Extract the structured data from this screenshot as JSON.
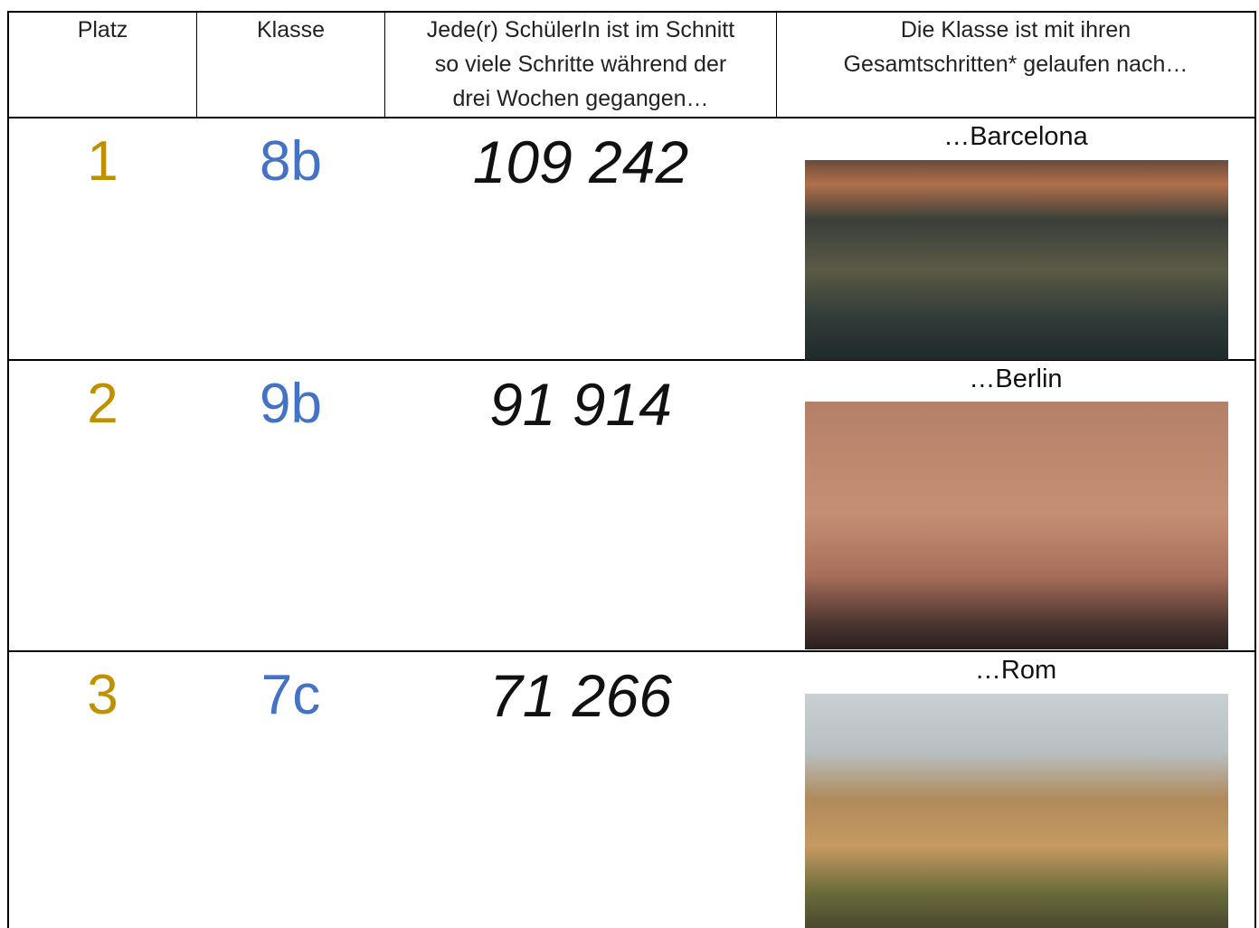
{
  "header": {
    "columns": [
      [
        "Platz"
      ],
      [
        "Klasse"
      ],
      [
        "Jede(r) SchülerIn ist im Schnitt",
        "so viele Schritte während der",
        "drei Wochen gegangen…"
      ],
      [
        "Die Klasse ist mit ihren",
        "Gesamtschritten* gelaufen nach…"
      ]
    ]
  },
  "table": {
    "rows": [
      {
        "rank": "1",
        "class": "8b",
        "steps": "109 242",
        "city": "…Barcelona"
      },
      {
        "rank": "2",
        "class": "9b",
        "steps": "91 914",
        "city": "…Berlin"
      },
      {
        "rank": "3",
        "class": "7c",
        "steps": "71 266",
        "city": "…Rom"
      }
    ]
  }
}
